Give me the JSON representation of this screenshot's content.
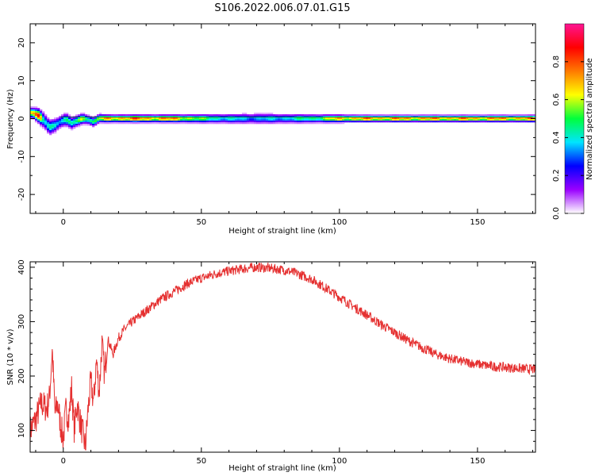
{
  "figure_title": "S106.2022.006.07.01.G15",
  "colors": {
    "snr_line": "#e53030",
    "axis": "#000000",
    "background": "#ffffff",
    "colormap": [
      "#ffffff",
      "#9a00ff",
      "#0000ff",
      "#00e5ff",
      "#00ff3c",
      "#ffff00",
      "#ff7a00",
      "#ff0000",
      "#ff1493"
    ]
  },
  "chart_data": [
    {
      "type": "heatmap",
      "id": "spectrogram",
      "xlabel": "Height of straight line (km)",
      "ylabel": "Frequency (Hz)",
      "xlim": [
        -12,
        171
      ],
      "ylim": [
        -25,
        25
      ],
      "xticks": [
        0,
        50,
        100,
        150
      ],
      "yticks": [
        -20,
        -10,
        0,
        10,
        20
      ],
      "colorbar": {
        "label": "Normalized spectral amplitude",
        "range": [
          0,
          1
        ],
        "ticks": [
          "0.0",
          "0.2",
          "0.4",
          "0.6",
          "0.8"
        ],
        "tick_values": [
          0.0,
          0.2,
          0.4,
          0.6,
          0.8
        ]
      },
      "ridge_profile": [
        {
          "x": -11,
          "freq": 1.5,
          "amp": 0.85,
          "spread": 1.2
        },
        {
          "x": -9,
          "freq": 0.8,
          "amp": 0.9,
          "spread": 1.6
        },
        {
          "x": -7,
          "freq": -0.5,
          "amp": 0.45,
          "spread": 1.8
        },
        {
          "x": -5,
          "freq": -2.3,
          "amp": 0.55,
          "spread": 1.8
        },
        {
          "x": -3,
          "freq": -1.8,
          "amp": 0.5,
          "spread": 1.6
        },
        {
          "x": -1,
          "freq": -0.8,
          "amp": 0.45,
          "spread": 1.5
        },
        {
          "x": 1,
          "freq": -0.2,
          "amp": 0.5,
          "spread": 1.5
        },
        {
          "x": 3,
          "freq": -1.2,
          "amp": 0.5,
          "spread": 1.4
        },
        {
          "x": 5,
          "freq": -0.6,
          "amp": 0.55,
          "spread": 1.3
        },
        {
          "x": 7,
          "freq": 0.0,
          "amp": 0.75,
          "spread": 1.2
        },
        {
          "x": 9,
          "freq": -0.3,
          "amp": 0.6,
          "spread": 1.1
        },
        {
          "x": 11,
          "freq": -0.9,
          "amp": 0.55,
          "spread": 1.1
        },
        {
          "x": 13,
          "freq": 0.1,
          "amp": 0.7,
          "spread": 1.0
        },
        {
          "x": 16,
          "freq": 0.0,
          "amp": 0.8,
          "spread": 0.9
        },
        {
          "x": 20,
          "freq": 0.0,
          "amp": 0.85,
          "spread": 0.9
        },
        {
          "x": 25,
          "freq": 0.0,
          "amp": 0.9,
          "spread": 0.9
        },
        {
          "x": 30,
          "freq": 0.0,
          "amp": 0.85,
          "spread": 0.9
        },
        {
          "x": 40,
          "freq": 0.0,
          "amp": 0.85,
          "spread": 0.9
        },
        {
          "x": 50,
          "freq": 0.0,
          "amp": 0.6,
          "spread": 1.0
        },
        {
          "x": 60,
          "freq": 0.0,
          "amp": 0.45,
          "spread": 1.1
        },
        {
          "x": 70,
          "freq": 0.0,
          "amp": 0.4,
          "spread": 1.2
        },
        {
          "x": 80,
          "freq": 0.0,
          "amp": 0.45,
          "spread": 1.1
        },
        {
          "x": 90,
          "freq": 0.0,
          "amp": 0.55,
          "spread": 1.0
        },
        {
          "x": 100,
          "freq": 0.0,
          "amp": 0.8,
          "spread": 0.9
        },
        {
          "x": 110,
          "freq": 0.0,
          "amp": 0.85,
          "spread": 0.8
        },
        {
          "x": 120,
          "freq": 0.0,
          "amp": 0.85,
          "spread": 0.8
        },
        {
          "x": 130,
          "freq": 0.0,
          "amp": 0.85,
          "spread": 0.8
        },
        {
          "x": 140,
          "freq": 0.0,
          "amp": 0.85,
          "spread": 0.8
        },
        {
          "x": 150,
          "freq": 0.0,
          "amp": 0.85,
          "spread": 0.8
        },
        {
          "x": 160,
          "freq": 0.0,
          "amp": 0.85,
          "spread": 0.8
        },
        {
          "x": 170,
          "freq": 0.0,
          "amp": 0.85,
          "spread": 0.8
        }
      ],
      "reference_line_freq": 0.4
    },
    {
      "type": "line",
      "id": "snr",
      "xlabel": "Height of straight line (km)",
      "ylabel": "SNR (10 * v/v)",
      "xlim": [
        -12,
        171
      ],
      "ylim": [
        60,
        410
      ],
      "xticks": [
        0,
        50,
        100,
        150
      ],
      "yticks": [
        100,
        200,
        300,
        400
      ],
      "series": [
        {
          "color": "#e53030",
          "x": [
            -12,
            -10,
            -8,
            -6,
            -5,
            -4,
            -3,
            -2,
            -1,
            0,
            1,
            2,
            3,
            4,
            5,
            6,
            7,
            8,
            9,
            10,
            11,
            12,
            13,
            14,
            15,
            16,
            18,
            20,
            22,
            25,
            30,
            35,
            40,
            45,
            50,
            55,
            60,
            65,
            70,
            75,
            80,
            85,
            90,
            95,
            100,
            105,
            110,
            115,
            120,
            125,
            130,
            135,
            140,
            145,
            150,
            155,
            160,
            165,
            171
          ],
          "y": [
            100,
            120,
            150,
            140,
            160,
            250,
            130,
            150,
            110,
            85,
            140,
            120,
            180,
            100,
            150,
            120,
            95,
            70,
            140,
            190,
            150,
            230,
            170,
            260,
            200,
            270,
            240,
            270,
            285,
            300,
            320,
            340,
            355,
            370,
            380,
            388,
            393,
            397,
            400,
            398,
            395,
            388,
            378,
            362,
            345,
            328,
            312,
            295,
            280,
            265,
            252,
            240,
            232,
            226,
            222,
            218,
            216,
            214,
            212
          ]
        }
      ]
    }
  ]
}
